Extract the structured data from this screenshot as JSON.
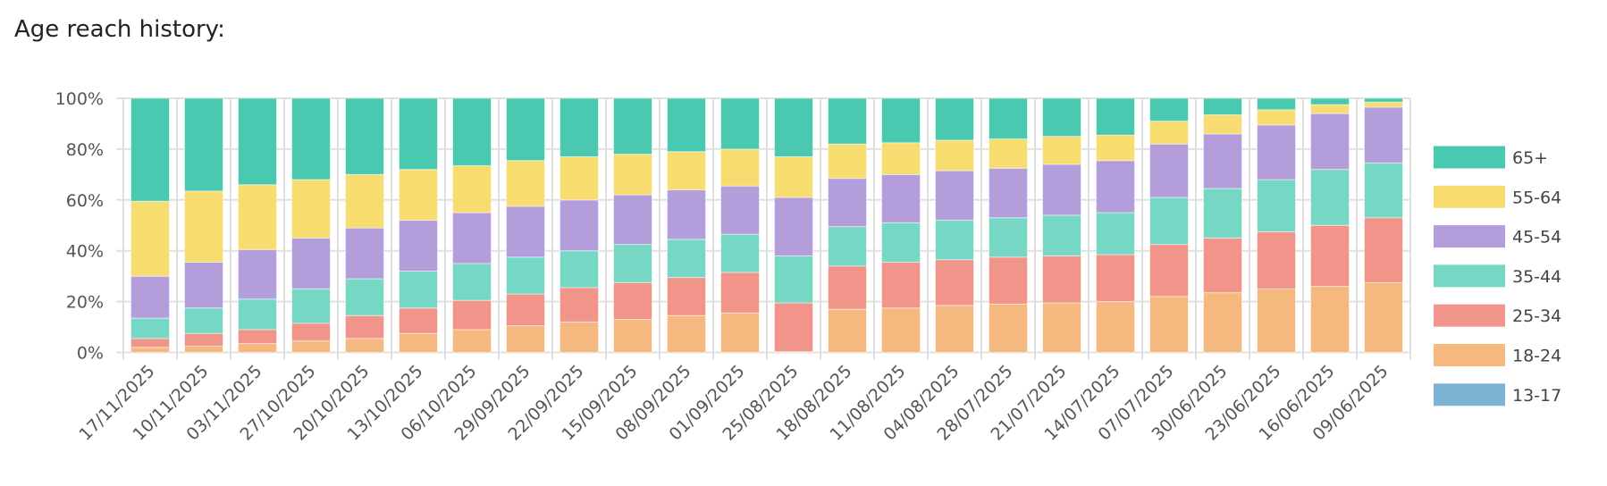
{
  "chart_data": {
    "type": "bar",
    "stacked": true,
    "normalized": true,
    "title": "Age reach history:",
    "xlabel": "",
    "ylabel": "",
    "ylim": [
      0,
      100
    ],
    "yticks": [
      "0%",
      "20%",
      "40%",
      "60%",
      "80%",
      "100%"
    ],
    "grid": true,
    "legend_position": "right",
    "categories": [
      "17/11/2025",
      "10/11/2025",
      "03/11/2025",
      "27/10/2025",
      "20/10/2025",
      "13/10/2025",
      "06/10/2025",
      "29/09/2025",
      "22/09/2025",
      "15/09/2025",
      "08/09/2025",
      "01/09/2025",
      "25/08/2025",
      "18/08/2025",
      "11/08/2025",
      "04/08/2025",
      "28/07/2025",
      "21/07/2025",
      "14/07/2025",
      "07/07/2025",
      "30/06/2025",
      "23/06/2025",
      "16/06/2025",
      "09/06/2025"
    ],
    "series": [
      {
        "name": "13-17",
        "color": "#7fb3d5",
        "values": [
          0,
          0,
          0,
          0,
          0,
          0,
          0,
          0,
          0,
          0,
          0,
          0,
          0,
          0,
          0,
          0,
          0,
          0,
          0,
          0,
          0,
          0,
          0,
          0
        ]
      },
      {
        "name": "18-24",
        "color": "#f5b97f",
        "values": [
          2,
          2.5,
          3.5,
          4.5,
          5.5,
          7.5,
          9,
          10.5,
          12,
          13,
          14.5,
          15.5,
          0.3,
          17,
          17.5,
          18.5,
          19,
          19.5,
          20,
          22,
          23.5,
          25,
          26,
          27.5
        ]
      },
      {
        "name": "25-34",
        "color": "#f1948a",
        "values": [
          3.5,
          5,
          5.5,
          7,
          9,
          10,
          11.5,
          12.5,
          13.5,
          14.5,
          15,
          16,
          19.2,
          17,
          18,
          18,
          18.5,
          18.5,
          18.5,
          20.5,
          21.5,
          22.5,
          24,
          25.5
        ]
      },
      {
        "name": "35-44",
        "color": "#76d7c4",
        "values": [
          8,
          10,
          12,
          13.5,
          14.5,
          14.5,
          14.5,
          14.5,
          14.5,
          15,
          15,
          15,
          18.5,
          15.5,
          15.5,
          15.5,
          15.5,
          16,
          16.5,
          18.5,
          19.5,
          20.5,
          22,
          21.5
        ]
      },
      {
        "name": "45-54",
        "color": "#b39ddb",
        "values": [
          16.5,
          18,
          19.5,
          20,
          20,
          20,
          20,
          20,
          20,
          19.5,
          19.5,
          19,
          23,
          19,
          19,
          19.5,
          19.5,
          20,
          20.5,
          21,
          21.5,
          21.5,
          22,
          22
        ]
      },
      {
        "name": "55-64",
        "color": "#f7dc6f",
        "values": [
          29.5,
          28,
          25.5,
          23,
          21,
          20,
          18.5,
          18,
          17,
          16,
          15,
          14.5,
          16,
          13.5,
          12.5,
          12,
          11.5,
          11,
          10,
          9,
          7.5,
          6,
          3.5,
          2
        ]
      },
      {
        "name": "65+",
        "color": "#48c9b0",
        "values": [
          40.5,
          36.5,
          34,
          32,
          30,
          28,
          26.5,
          24.5,
          23,
          22,
          21,
          20,
          23,
          18,
          17.5,
          16.5,
          16,
          15,
          14.5,
          9,
          6.5,
          4.5,
          2.5,
          1.5
        ]
      }
    ],
    "legend_order": [
      "65+",
      "55-64",
      "45-54",
      "35-44",
      "25-34",
      "18-24",
      "13-17"
    ]
  }
}
